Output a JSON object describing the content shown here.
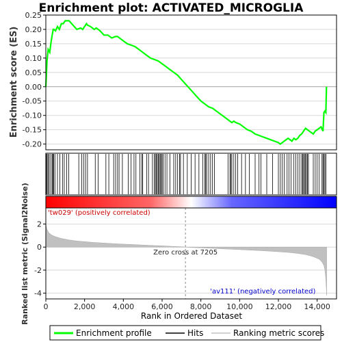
{
  "chart_data": {
    "type": "line",
    "title": "Enrichment plot: ACTIVATED_MICROGLIA",
    "es_panel": {
      "ylabel": "Enrichment score (ES)",
      "ylim": [
        -0.22,
        0.25
      ],
      "yticks": [
        -0.2,
        -0.15,
        -0.1,
        -0.05,
        0.0,
        0.05,
        0.1,
        0.15,
        0.2,
        0.25
      ],
      "ytick_labels": [
        "-0.20",
        "-0.15",
        "-0.10",
        "-0.05",
        "0.00",
        "0.05",
        "0.10",
        "0.15",
        "0.20",
        "0.25"
      ],
      "series": [
        {
          "name": "Enrichment profile",
          "color": "#00ff00",
          "x": [
            0,
            60,
            120,
            200,
            280,
            330,
            380,
            420,
            500,
            600,
            700,
            800,
            900,
            1000,
            1100,
            1200,
            1400,
            1600,
            1800,
            1900,
            2000,
            2100,
            2150,
            2300,
            2500,
            2600,
            2800,
            3000,
            3200,
            3400,
            3600,
            3700,
            3800,
            4000,
            4200,
            4400,
            4600,
            4800,
            5000,
            5200,
            5400,
            5600,
            5800,
            6000,
            6200,
            6400,
            6600,
            6800,
            7000,
            7200,
            7400,
            7600,
            7800,
            8000,
            8200,
            8400,
            8600,
            8800,
            9000,
            9200,
            9400,
            9600,
            9700,
            9800,
            10000,
            10200,
            10400,
            10600,
            10800,
            11000,
            11200,
            11400,
            11600,
            11800,
            12000,
            12100,
            12200,
            12300,
            12400,
            12500,
            12600,
            12700,
            12800,
            12900,
            13000,
            13100,
            13200,
            13300,
            13400,
            13500,
            13600,
            13700,
            13800,
            13900,
            14000,
            14100,
            14200,
            14300,
            14350,
            14400,
            14450,
            14480
          ],
          "y": [
            0.0,
            0.09,
            0.13,
            0.12,
            0.16,
            0.18,
            0.2,
            0.2,
            0.195,
            0.21,
            0.2,
            0.22,
            0.22,
            0.23,
            0.23,
            0.23,
            0.215,
            0.2,
            0.205,
            0.2,
            0.21,
            0.22,
            0.215,
            0.21,
            0.2,
            0.205,
            0.195,
            0.18,
            0.18,
            0.17,
            0.175,
            0.175,
            0.17,
            0.16,
            0.15,
            0.145,
            0.14,
            0.13,
            0.12,
            0.11,
            0.1,
            0.095,
            0.09,
            0.08,
            0.07,
            0.06,
            0.05,
            0.04,
            0.025,
            0.01,
            -0.005,
            -0.02,
            -0.035,
            -0.05,
            -0.06,
            -0.07,
            -0.075,
            -0.085,
            -0.095,
            -0.105,
            -0.115,
            -0.125,
            -0.12,
            -0.125,
            -0.13,
            -0.14,
            -0.15,
            -0.155,
            -0.165,
            -0.17,
            -0.175,
            -0.18,
            -0.185,
            -0.19,
            -0.195,
            -0.2,
            -0.195,
            -0.19,
            -0.185,
            -0.18,
            -0.185,
            -0.19,
            -0.18,
            -0.185,
            -0.18,
            -0.17,
            -0.165,
            -0.155,
            -0.145,
            -0.15,
            -0.155,
            -0.16,
            -0.165,
            -0.155,
            -0.15,
            -0.145,
            -0.14,
            -0.155,
            -0.09,
            -0.085,
            -0.09,
            0.0
          ]
        }
      ]
    },
    "hits": {
      "name": "Hits",
      "color": "#000000",
      "positions": [
        30,
        70,
        120,
        180,
        260,
        330,
        370,
        410,
        470,
        600,
        720,
        860,
        950,
        1080,
        1180,
        1700,
        1850,
        1950,
        2050,
        2150,
        2550,
        2700,
        3100,
        3250,
        3500,
        3600,
        3700,
        3780,
        3950,
        4250,
        4400,
        4550,
        4650,
        4850,
        4950,
        5000,
        5200,
        5300,
        5500,
        5600,
        5650,
        5700,
        5750,
        5800,
        5850,
        5900,
        5950,
        6000,
        6050,
        6150,
        6250,
        6400,
        6600,
        6700,
        6800,
        6900,
        6950,
        7100,
        7300,
        7500,
        7700,
        7900,
        8100,
        8200,
        8250,
        8300,
        8400,
        8500,
        8600,
        8700,
        9400,
        9500,
        9550,
        9600,
        9700,
        9800,
        9900,
        10100,
        10300,
        10500,
        10800,
        11000,
        11100,
        11400,
        11700,
        12000,
        12100,
        12200,
        12300,
        12450,
        12550,
        12650,
        12800,
        12900,
        13000,
        13100,
        13200,
        13250,
        13300,
        13350,
        13400,
        13450,
        13500,
        13550,
        13800,
        13900,
        14000,
        14100,
        14250,
        14300,
        14350,
        14400,
        14450
      ]
    },
    "metric_panel": {
      "name": "Ranking metric scores",
      "color": "#c0c0c0",
      "ylabel": "Ranked list metric (Signal2Noise)",
      "ylim": [
        -4.5,
        3.4
      ],
      "yticks": [
        -4,
        -2,
        0,
        2
      ],
      "ytick_labels": [
        "-4",
        "-2",
        "0",
        "2"
      ],
      "x": [
        0,
        50,
        150,
        300,
        500,
        800,
        1200,
        1600,
        2000,
        2500,
        3000,
        3500,
        4000,
        4500,
        5000,
        5500,
        6000,
        6500,
        7000,
        7205,
        7500,
        8000,
        8500,
        9000,
        9500,
        10000,
        10500,
        11000,
        11500,
        12000,
        12500,
        13000,
        13400,
        13700,
        13900,
        14100,
        14250,
        14350,
        14400,
        14440,
        14470,
        14490
      ],
      "y": [
        2.0,
        1.6,
        1.25,
        1.05,
        0.9,
        0.75,
        0.62,
        0.53,
        0.47,
        0.4,
        0.35,
        0.3,
        0.26,
        0.22,
        0.18,
        0.14,
        0.11,
        0.07,
        0.03,
        0.0,
        -0.03,
        -0.07,
        -0.1,
        -0.14,
        -0.18,
        -0.22,
        -0.26,
        -0.3,
        -0.35,
        -0.4,
        -0.46,
        -0.55,
        -0.65,
        -0.78,
        -0.9,
        -1.05,
        -1.3,
        -1.6,
        -2.0,
        -2.6,
        -3.5,
        -4.2
      ]
    },
    "xaxis": {
      "label": "Rank in Ordered Dataset",
      "xlim": [
        0,
        15000
      ],
      "ticks": [
        0,
        2000,
        4000,
        6000,
        8000,
        10000,
        12000,
        14000
      ],
      "tick_labels": [
        "0",
        "2,000",
        "4,000",
        "6,000",
        "8,000",
        "10,000",
        "12,000",
        "14,000"
      ]
    },
    "n_genes": 14480,
    "zero_cross": 7205,
    "annotations": {
      "zero_cross_label": "Zero cross at 7205",
      "positive_label": "'tw029' (positively correlated)",
      "negative_label": "'av111' (negatively correlated)",
      "positive_color": "#cc0000",
      "negative_color": "#0000cc"
    },
    "legend": {
      "position": "bottom",
      "items": [
        {
          "label": "Enrichment profile",
          "color": "#00ff00"
        },
        {
          "label": "Hits",
          "color": "#000000"
        },
        {
          "label": "Ranking metric scores",
          "color": "#c0c0c0"
        }
      ]
    },
    "colors": {
      "grid": "#d8d8d8",
      "zero_line": "#a0a0a0",
      "bar_red": "#ff0000",
      "bar_white": "#ffffff",
      "bar_blue": "#0000ff"
    }
  }
}
